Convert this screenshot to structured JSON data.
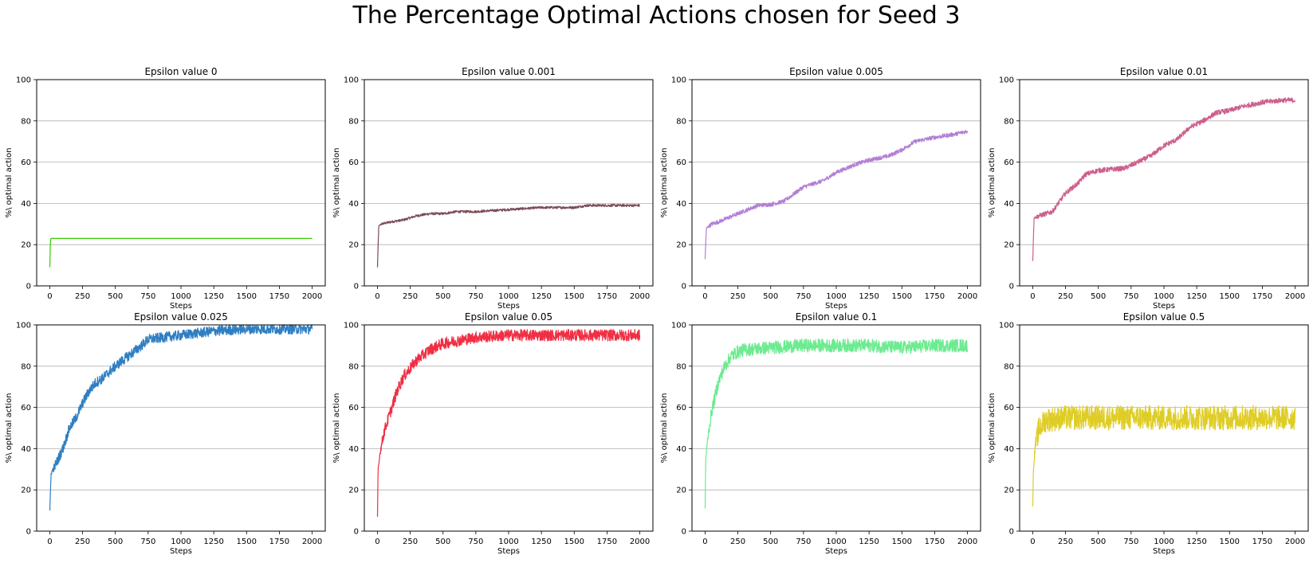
{
  "figure": {
    "title": "The Percentage Optimal Actions chosen for Seed 3"
  },
  "chart_data": [
    {
      "type": "line",
      "title": "Epsilon value 0",
      "xlabel": "Steps",
      "ylabel": "%\\ optimal action",
      "xlim": [
        -100,
        2100
      ],
      "ylim": [
        0,
        100
      ],
      "xticks": [
        0,
        250,
        500,
        750,
        1000,
        1250,
        1500,
        1750,
        2000
      ],
      "yticks": [
        0,
        20,
        40,
        60,
        80,
        100
      ],
      "grid": "horizontal",
      "color": "#33cc00",
      "x": [
        0,
        5,
        10,
        20,
        50,
        2000
      ],
      "y": [
        9,
        22,
        23,
        23,
        23,
        23
      ],
      "noise": 0
    },
    {
      "type": "line",
      "title": "Epsilon value 0.001",
      "xlabel": "Steps",
      "ylabel": "%\\ optimal action",
      "xlim": [
        -100,
        2100
      ],
      "ylim": [
        0,
        100
      ],
      "xticks": [
        0,
        250,
        500,
        750,
        1000,
        1250,
        1500,
        1750,
        2000
      ],
      "yticks": [
        0,
        20,
        40,
        60,
        80,
        100
      ],
      "grid": "horizontal",
      "color": "#7a4b55",
      "x": [
        0,
        10,
        30,
        100,
        200,
        300,
        400,
        500,
        600,
        750,
        1000,
        1250,
        1500,
        1600,
        1750,
        2000
      ],
      "y": [
        9,
        29,
        30,
        31,
        32,
        34,
        35,
        35,
        36,
        36,
        37,
        38,
        38,
        39,
        39,
        39
      ],
      "noise": 0.6
    },
    {
      "type": "line",
      "title": "Epsilon value 0.005",
      "xlabel": "Steps",
      "ylabel": "%\\ optimal action",
      "xlim": [
        -100,
        2100
      ],
      "ylim": [
        0,
        100
      ],
      "xticks": [
        0,
        250,
        500,
        750,
        1000,
        1250,
        1500,
        1750,
        2000
      ],
      "yticks": [
        0,
        20,
        40,
        60,
        80,
        100
      ],
      "grid": "horizontal",
      "color": "#b27ed6",
      "x": [
        0,
        10,
        50,
        100,
        250,
        400,
        500,
        600,
        750,
        900,
        1000,
        1150,
        1250,
        1400,
        1500,
        1600,
        1750,
        1900,
        2000
      ],
      "y": [
        13,
        28,
        30,
        31,
        35,
        39,
        39.5,
        41,
        48,
        51,
        55,
        59,
        61,
        63,
        66,
        70,
        72,
        73.5,
        75
      ],
      "noise": 1
    },
    {
      "type": "line",
      "title": "Epsilon value 0.01",
      "xlabel": "Steps",
      "ylabel": "%\\ optimal action",
      "xlim": [
        -100,
        2100
      ],
      "ylim": [
        0,
        100
      ],
      "xticks": [
        0,
        250,
        500,
        750,
        1000,
        1250,
        1500,
        1750,
        2000
      ],
      "yticks": [
        0,
        20,
        40,
        60,
        80,
        100
      ],
      "grid": "horizontal",
      "color": "#cc5f8c",
      "x": [
        0,
        10,
        50,
        150,
        250,
        350,
        400,
        500,
        600,
        700,
        800,
        900,
        1000,
        1100,
        1200,
        1300,
        1400,
        1500,
        1600,
        1750,
        1900,
        2000
      ],
      "y": [
        12,
        33,
        34,
        36,
        45,
        50,
        54,
        56,
        56.5,
        57,
        60,
        63,
        68,
        71,
        77,
        80,
        84,
        85,
        87,
        89,
        90,
        90
      ],
      "noise": 1.2
    },
    {
      "type": "line",
      "title": "Epsilon value 0.025",
      "xlabel": "Steps",
      "ylabel": "%\\ optimal action",
      "xlim": [
        -100,
        2100
      ],
      "ylim": [
        0,
        100
      ],
      "xticks": [
        0,
        250,
        500,
        750,
        1000,
        1250,
        1500,
        1750,
        2000
      ],
      "yticks": [
        0,
        20,
        40,
        60,
        80,
        100
      ],
      "grid": "horizontal",
      "color": "#2f7ec2",
      "x": [
        0,
        10,
        50,
        100,
        150,
        200,
        250,
        300,
        350,
        400,
        500,
        600,
        700,
        750,
        1000,
        1250,
        1500,
        1750,
        2000
      ],
      "y": [
        10,
        28,
        33,
        40,
        50,
        55,
        62,
        68,
        72,
        74,
        80,
        85,
        90,
        93,
        95,
        97,
        98,
        98,
        98
      ],
      "noise": 2.5
    },
    {
      "type": "line",
      "title": "Epsilon value 0.05",
      "xlabel": "Steps",
      "ylabel": "%\\ optimal action",
      "xlim": [
        -100,
        2100
      ],
      "ylim": [
        0,
        100
      ],
      "xticks": [
        0,
        250,
        500,
        750,
        1000,
        1250,
        1500,
        1750,
        2000
      ],
      "yticks": [
        0,
        20,
        40,
        60,
        80,
        100
      ],
      "grid": "horizontal",
      "color": "#f02e44",
      "x": [
        0,
        5,
        20,
        50,
        100,
        150,
        200,
        250,
        300,
        400,
        500,
        750,
        1000,
        1250,
        1500,
        1750,
        2000
      ],
      "y": [
        7,
        30,
        38,
        48,
        58,
        68,
        75,
        79,
        83,
        88,
        91,
        94,
        95,
        95,
        95,
        95,
        95
      ],
      "noise": 2.8
    },
    {
      "type": "line",
      "title": "Epsilon value 0.1",
      "xlabel": "Steps",
      "ylabel": "%\\ optimal action",
      "xlim": [
        -100,
        2100
      ],
      "ylim": [
        0,
        100
      ],
      "xticks": [
        0,
        250,
        500,
        750,
        1000,
        1250,
        1500,
        1750,
        2000
      ],
      "yticks": [
        0,
        20,
        40,
        60,
        80,
        100
      ],
      "grid": "horizontal",
      "color": "#6ceb90",
      "x": [
        0,
        5,
        20,
        50,
        100,
        150,
        200,
        250,
        300,
        500,
        750,
        1000,
        1250,
        1500,
        1750,
        2000
      ],
      "y": [
        11,
        35,
        45,
        58,
        72,
        80,
        85,
        87,
        88,
        89,
        90,
        90,
        90,
        89,
        90,
        90
      ],
      "noise": 3.2
    },
    {
      "type": "line",
      "title": "Epsilon value 0.5",
      "xlabel": "Steps",
      "ylabel": "%\\ optimal action",
      "xlim": [
        -100,
        2100
      ],
      "ylim": [
        0,
        100
      ],
      "xticks": [
        0,
        250,
        500,
        750,
        1000,
        1250,
        1500,
        1750,
        2000
      ],
      "yticks": [
        0,
        20,
        40,
        60,
        80,
        100
      ],
      "grid": "horizontal",
      "color": "#dfcd27",
      "x": [
        0,
        5,
        20,
        50,
        100,
        250,
        500,
        750,
        1000,
        1250,
        1500,
        1750,
        2000
      ],
      "y": [
        12,
        30,
        42,
        50,
        54,
        55,
        55,
        55,
        55,
        55,
        55,
        55,
        55
      ],
      "noise": 6
    }
  ]
}
